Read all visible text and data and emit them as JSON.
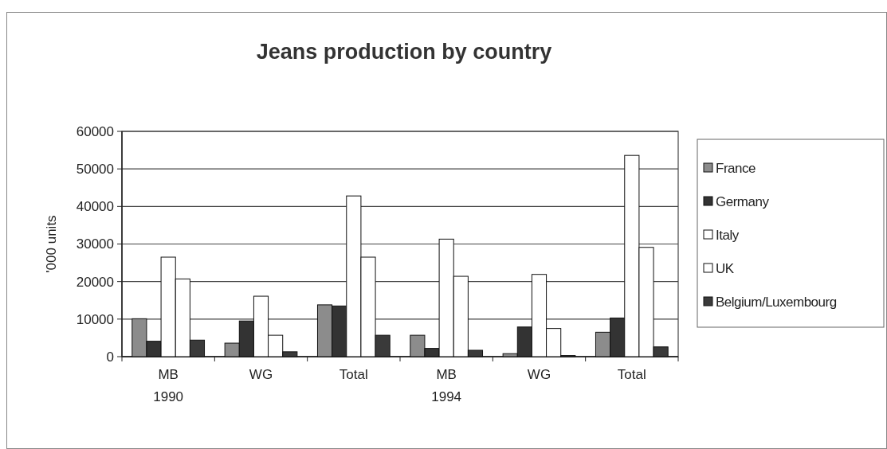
{
  "chart_data": {
    "type": "bar",
    "title": "Jeans production by country",
    "ylabel": "'000  units",
    "categories": [
      "MB\n1990",
      "WG",
      "Total",
      "MB\n1994",
      "WG",
      "Total"
    ],
    "series": [
      {
        "name": "France",
        "color": "#8c8c8c",
        "values": [
          10100,
          3600,
          13800,
          5700,
          800,
          6500
        ]
      },
      {
        "name": "Germany",
        "color": "#333333",
        "values": [
          4100,
          9500,
          13500,
          2200,
          7900,
          10300
        ]
      },
      {
        "name": "Italy",
        "color": "#ffffff",
        "values": [
          26500,
          16100,
          42800,
          31300,
          21900,
          53600
        ]
      },
      {
        "name": "UK",
        "color": "#ffffff",
        "values": [
          20700,
          5700,
          26500,
          21400,
          7500,
          29100
        ]
      },
      {
        "name": "Belgium/Luxembourg",
        "color": "#3a3a3a",
        "values": [
          4400,
          1300,
          5700,
          1700,
          300,
          2600
        ]
      }
    ],
    "ylim": [
      0,
      60000
    ],
    "yticks": [
      0,
      10000,
      20000,
      30000,
      40000,
      50000,
      60000
    ],
    "grid": "y",
    "legend": "right"
  }
}
